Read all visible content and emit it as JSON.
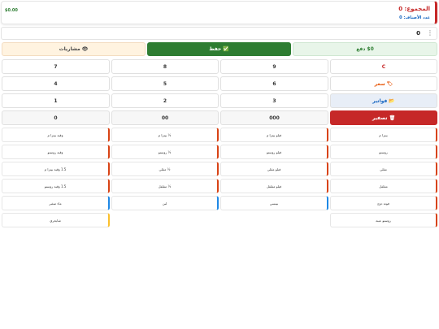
{
  "header": {
    "title": "المجموع: 0",
    "subtitle": "عدد الأصناف: 0",
    "amount": "$0.00"
  },
  "display": {
    "value": "0",
    "menu_glyph": "⋮"
  },
  "actions": {
    "pay": "$0 دفع",
    "save": "✅ حفظ",
    "share": "👁 مشاريات"
  },
  "side": {
    "clear": "C",
    "price": "🏷 سعر",
    "invoices": "📂 فواتير",
    "reset": "🗑 تصفير"
  },
  "keys": [
    "9",
    "8",
    "7",
    "6",
    "5",
    "4",
    "3",
    "2",
    "1",
    "000",
    "00",
    "0"
  ],
  "items": [
    "بيتزا م",
    "فيلو بيتزا م",
    "½ بيتزا م",
    "وقية بيتزا م",
    "روستو",
    "فيلو روستو",
    "½ روستو",
    "وقية روستو",
    "مقلي",
    "فيلو مقلي",
    "½ مقلي",
    "1.5 وقية بيتزا م",
    "مفلفل",
    "فيلو مفلفل",
    "½ مفلفل",
    "1.5 وقية روستو",
    "فوتة دوج",
    "بيبسي",
    "لبن",
    "ماء صغير",
    "روستو عينة",
    "شايجري"
  ],
  "colors": {
    "primary_green": "#2e7d32",
    "danger_red": "#c62828",
    "info_blue": "#1565c0"
  }
}
